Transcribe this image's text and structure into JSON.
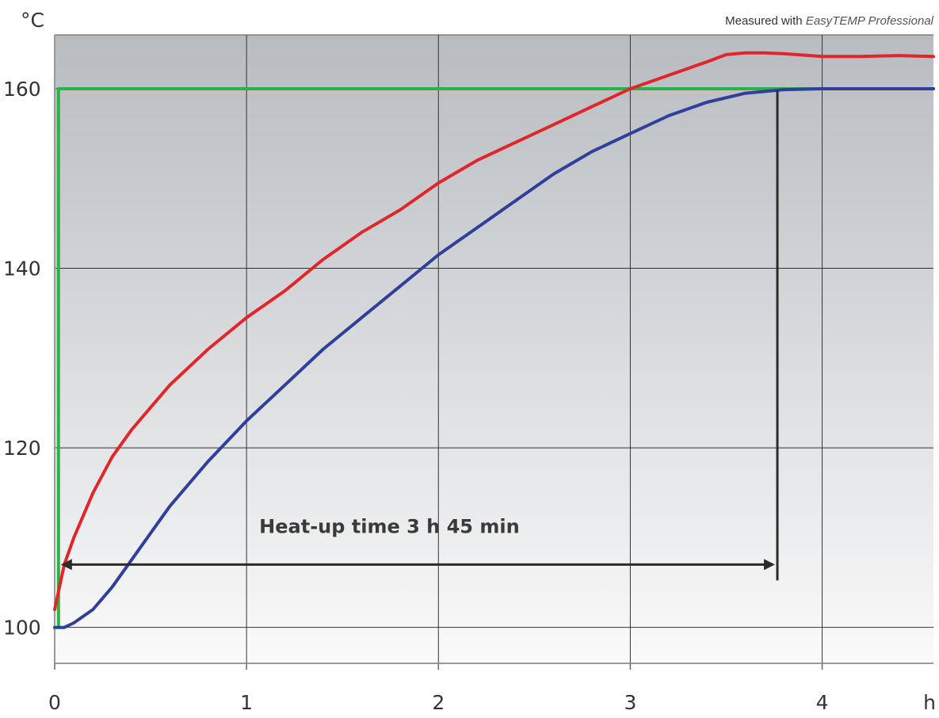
{
  "chart_data": {
    "type": "line",
    "ylabel": "°C",
    "xlabel": "h",
    "note_prefix": "Measured with ",
    "note_emph": "EasyTEMP Professional",
    "xlim": [
      0,
      4.58
    ],
    "ylim": [
      96,
      166
    ],
    "x_ticks": [
      0,
      1,
      2,
      3,
      4
    ],
    "y_ticks": [
      100,
      120,
      140,
      160
    ],
    "grid": true,
    "series": [
      {
        "color": "#2bb34a",
        "x": [
          0.02,
          0.02,
          4.58
        ],
        "y": [
          100,
          160,
          160
        ]
      },
      {
        "color": "#e0262b",
        "x": [
          0,
          0.05,
          0.1,
          0.2,
          0.3,
          0.4,
          0.5,
          0.6,
          0.8,
          1.0,
          1.2,
          1.4,
          1.6,
          1.8,
          2.0,
          2.2,
          2.4,
          2.6,
          2.8,
          3.0,
          3.2,
          3.4,
          3.5,
          3.6,
          3.7,
          3.8,
          4.0,
          4.2,
          4.4,
          4.58
        ],
        "y": [
          102,
          107,
          110,
          115,
          119,
          122,
          124.5,
          127,
          131,
          134.5,
          137.5,
          141,
          144,
          146.5,
          149.5,
          152,
          154,
          156,
          158,
          160,
          161.5,
          163,
          163.8,
          164,
          164,
          163.9,
          163.6,
          163.6,
          163.7,
          163.6
        ]
      },
      {
        "color": "#2f3f9b",
        "x": [
          0,
          0.05,
          0.1,
          0.2,
          0.3,
          0.4,
          0.5,
          0.6,
          0.7,
          0.8,
          1.0,
          1.2,
          1.4,
          1.6,
          1.8,
          2.0,
          2.2,
          2.4,
          2.6,
          2.8,
          3.0,
          3.2,
          3.4,
          3.6,
          3.8,
          4.0,
          4.2,
          4.4,
          4.58
        ],
        "y": [
          100,
          100,
          100.5,
          102,
          104.5,
          107.5,
          110.5,
          113.5,
          116,
          118.5,
          123,
          127,
          131,
          134.5,
          138,
          141.5,
          144.5,
          147.5,
          150.5,
          153,
          155,
          157,
          158.5,
          159.5,
          159.9,
          160,
          160,
          160,
          160
        ]
      }
    ],
    "annotations": [
      {
        "text": "Heat-up time 3 h 45 min",
        "from_x": 0.02,
        "to_x": 3.75,
        "y": 107
      }
    ]
  }
}
